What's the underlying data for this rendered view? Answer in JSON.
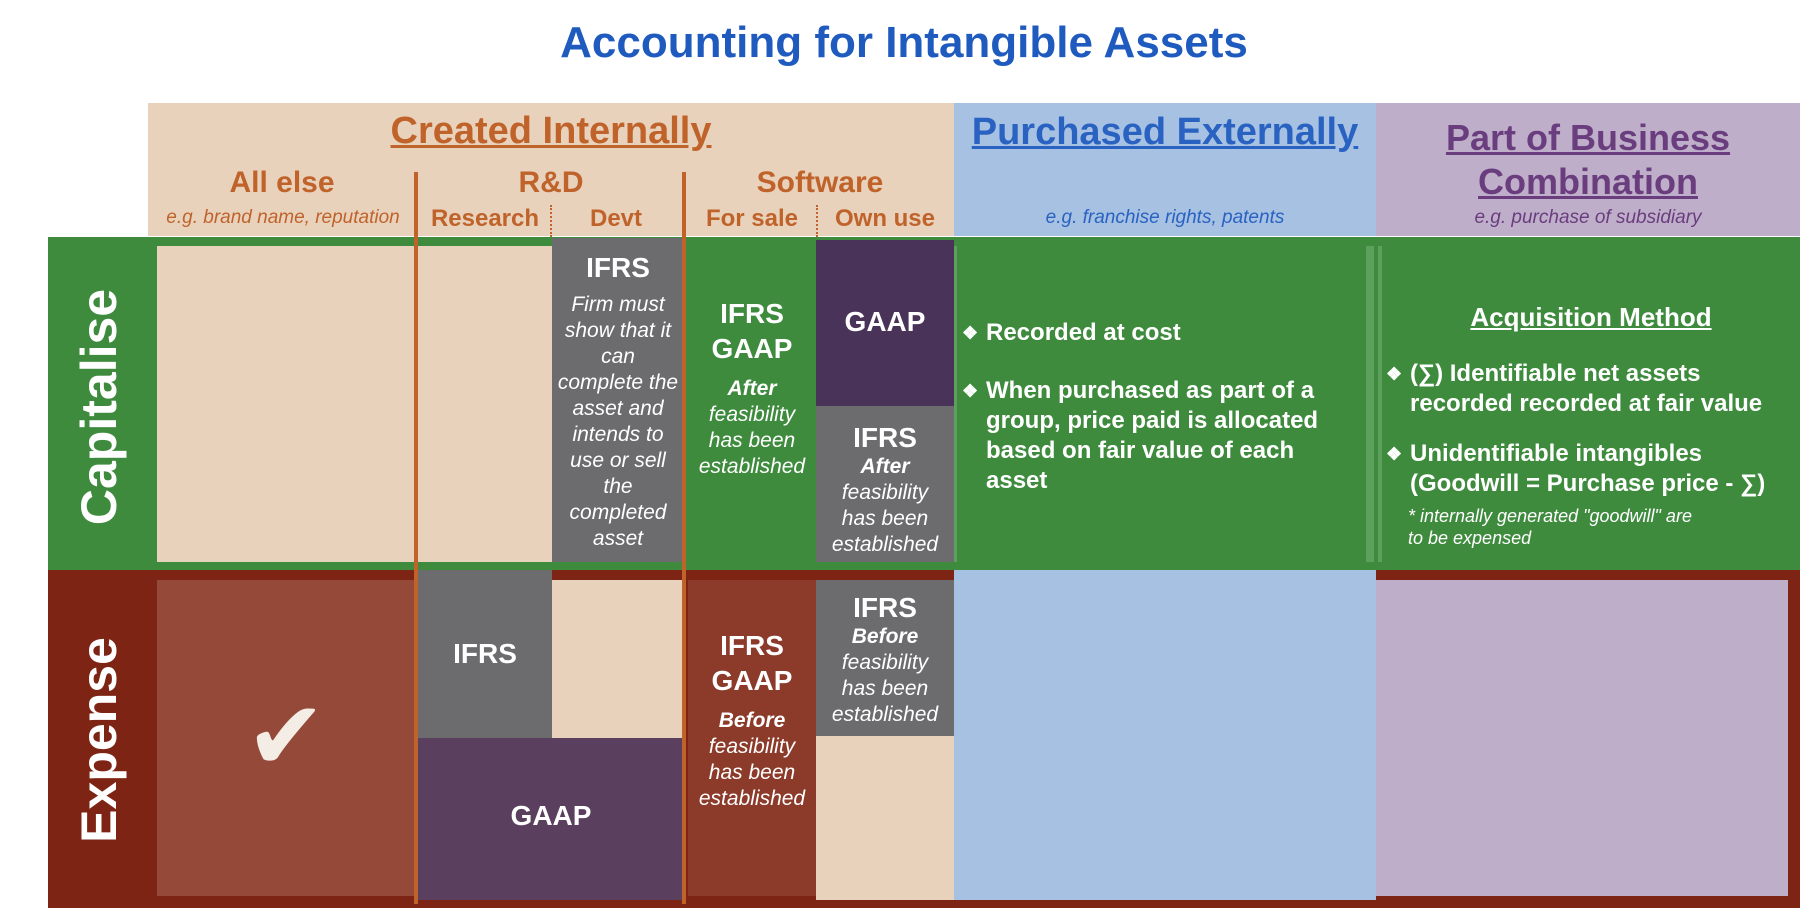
{
  "title": "Accounting for Intangible Assets",
  "headers": {
    "created_internally": "Created Internally",
    "purchased_externally": "Purchased Externally",
    "business_combination": "Part of Business Combination",
    "all_else": "All else",
    "all_else_eg": "e.g. brand name, reputation",
    "rd": "R&D",
    "research": "Research",
    "devt": "Devt",
    "software": "Software",
    "for_sale": "For sale",
    "own_use": "Own use",
    "purchased_eg": "e.g. franchise rights, patents",
    "business_eg": "e.g. purchase of subsidiary"
  },
  "rows": {
    "capitalise": "Capitalise",
    "expense": "Expense"
  },
  "cells": {
    "devt_cap_title": "IFRS",
    "devt_cap_text": "Firm must show that it can complete the asset and intends to use or sell the completed asset",
    "forsale_cap_title1": "IFRS",
    "forsale_cap_title2": "GAAP",
    "forsale_cap_after": "After",
    "forsale_cap_text": "feasibility has been established",
    "ownuse_cap_gaap": "GAAP",
    "ownuse_cap_ifrs": "IFRS",
    "ownuse_cap_after": "After",
    "ownuse_cap_text": "feasibility has been established",
    "research_exp_ifrs": "IFRS",
    "rd_exp_gaap": "GAAP",
    "forsale_exp_title1": "IFRS",
    "forsale_exp_title2": "GAAP",
    "forsale_exp_before": "Before",
    "forsale_exp_text": "feasibility has been established",
    "ownuse_exp_ifrs": "IFRS",
    "ownuse_exp_before": "Before",
    "ownuse_exp_text": "feasibility has been established",
    "checkmark": "✔"
  },
  "purchased": {
    "bullet_mark": "❖",
    "bullet1": "Recorded at cost",
    "bullet2": "When purchased as part of a group, price paid is allocated based on fair value of each asset"
  },
  "business": {
    "method": "Acquisition Method",
    "bullet_mark": "❖",
    "bullet1": "(∑) Identifiable net assets recorded recorded at fair value",
    "bullet2": "Unidentifiable intangibles (Goodwill = Purchase price - ∑)",
    "note": "* internally generated \"goodwill\" are to be expensed"
  },
  "colors": {
    "title": "#1f5bbf",
    "created": "#c0632b",
    "purchased": "#2a62c2",
    "business": "#6a3d7e",
    "capitalise_row": "#3e8b3e",
    "expense_row": "#7e2414",
    "ifrs_gray": "#6c6b6e",
    "gaap_purple": "#4a3358"
  }
}
